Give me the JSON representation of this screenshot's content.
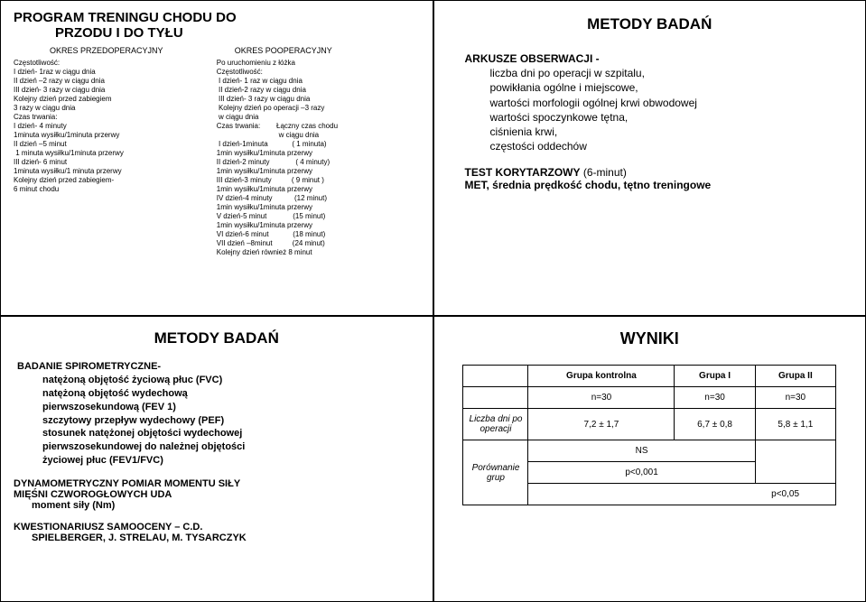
{
  "tl": {
    "title_line1": "PROGRAM  TRENINGU  CHODU  DO",
    "title_line2": "PRZODU I  DO TYŁU",
    "header_left": "OKRES PRZEDOPERACYJNY",
    "header_right": "OKRES POOPERACYJNY",
    "left_lines": [
      "Częstotliwość:",
      "I dzień- 1raz w ciągu dnia",
      "II dzień –2 razy w ciągu dnia",
      "III dzień- 3 razy w ciągu dnia",
      "Kolejny dzień przed zabiegiem",
      "3 razy w ciągu dnia",
      "Czas trwania:",
      "I dzień- 4 minuty",
      "1minuta wysiłku/1minuta przerwy",
      "II dzień –5 minut",
      " 1 minuta wysiłku/1minuta przerwy",
      "III dzień- 6 minut",
      "1minuta wysiłku/1 minuta przerwy",
      "Kolejny dzień przed zabiegiem-",
      "6 minut chodu"
    ],
    "right_lines": [
      "Po uruchomieniu z łóżka",
      "Częstotliwość:",
      " I dzień- 1 raz w ciągu dnia",
      " II dzień-2 razy w ciągu dnia",
      " III dzień- 3 razy w ciągu dnia",
      " Kolejny dzień po operacji –3 razy",
      " w ciągu dnia",
      "Czas trwania:        Łączny czas chodu",
      "                               w ciągu dnia",
      " I dzień-1minuta            ( 1 minuta)",
      "1min wysiłku/1minuta przerwy",
      "",
      "II dzień-2 minuty             ( 4 minuty)",
      "1min wysiłku/1minuta przerwy",
      "III dzień-3 minuty          ( 9 minut )",
      "1min wysiłku/1minuta przerwy",
      "IV dzień-4 minuty           (12 minut)",
      "1min wysiłku/1minuta przerwy",
      "V dzień-5 minut             (15 minut)",
      "1min wysiłku/1minuta przerwy",
      "VI dzień-6 minut            (18 minut)",
      "VII dzień –8minut          (24 minut)",
      "Kolejny dzień również 8 minut"
    ]
  },
  "tr": {
    "heading": "METODY BADAŃ",
    "lead": "ARKUSZE OBSERWACJI -",
    "lines": [
      "liczba dni po operacji w szpitalu,",
      "powikłania ogólne i miejscowe,",
      "wartości morfologii ogólnej krwi obwodowej",
      "wartości spoczynkowe tętna,",
      "ciśnienia krwi,",
      "częstości oddechów"
    ],
    "t2a": "TEST KORYTARZOWY",
    "t2a_suffix": " (6-minut)",
    "t2b": "MET, średnia prędkość chodu, tętno treningowe"
  },
  "bl": {
    "heading": "METODY BADAŃ",
    "spiro_lead": "BADANIE SPIROMETRYCZNE-",
    "spiro_lines": [
      "natężoną objętość życiową płuc (FVC)",
      "natężoną objętość wydechową",
      "pierwszosekundową (FEV 1)",
      "szczytowy przepływ wydechowy (PEF)",
      "stosunek natężonej objętości wydechowej",
      "pierwszosekundowej do należnej objętości",
      "życiowej płuc (FEV1/FVC)"
    ],
    "dyn_lead": "DYNAMOMETRYCZNY  POMIAR MOMENTU SIŁY",
    "dyn_l2": "MIĘŚNI  CZWOROGŁOWYCH UDA",
    "dyn_l3": "moment siły (Nm)",
    "kw_lead": "KWESTIONARIUSZ SAMOOCENY – C.D.",
    "kw_l2": "SPIELBERGER, J. STRELAU, M. TYSARCZYK"
  },
  "br": {
    "heading": "WYNIKI",
    "table": {
      "columns": [
        "",
        "Grupa kontrolna",
        "Grupa I",
        "Grupa II"
      ],
      "row_n": [
        "",
        "n=30",
        "n=30",
        "n=30"
      ],
      "row_days_label": "Liczba dni po operacji",
      "row_days": [
        "7,2 ± 1,7",
        "6,7 ± 0,8",
        "5,8 ± 1,1"
      ],
      "row_cmp_label": "Porównanie grup",
      "ns": "NS",
      "p1": "p<0,001",
      "p2": "p<0,05"
    }
  }
}
